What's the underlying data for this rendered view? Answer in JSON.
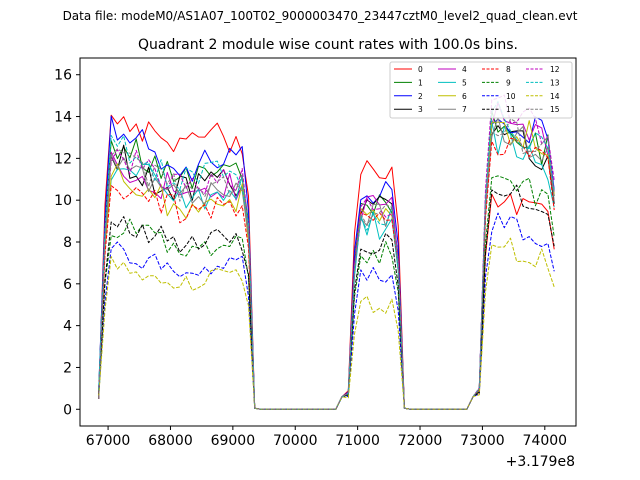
{
  "chart_data": {
    "type": "line",
    "suptitle": "Data file: modeM0/AS1A07_100T02_9000003470_23447cztM0_level2_quad_clean.evt",
    "title": "Quadrant 2 module wise count rates with 100.0s bins.",
    "xlabel": "",
    "ylabel": "",
    "x_offset_label": "+3.179e8",
    "x_offset": 317900000,
    "xlim": [
      66550,
      74500
    ],
    "ylim": [
      -0.8,
      16.8
    ],
    "xticks": [
      67000,
      68000,
      69000,
      70000,
      71000,
      72000,
      73000,
      74000
    ],
    "xtick_labels": [
      "67000",
      "68000",
      "69000",
      "70000",
      "71000",
      "72000",
      "73000",
      "74000"
    ],
    "yticks": [
      0,
      2,
      4,
      6,
      8,
      10,
      12,
      14,
      16
    ],
    "ytick_labels": [
      "0",
      "2",
      "4",
      "6",
      "8",
      "10",
      "12",
      "14",
      "16"
    ],
    "grid": false,
    "legend_position": "top-right",
    "bin_size_s": 100,
    "segments": [
      {
        "start": 66850,
        "end": 69250
      },
      {
        "start": 70850,
        "end": 71650
      },
      {
        "start": 72950,
        "end": 74150
      }
    ],
    "series": [
      {
        "name": "0",
        "color": "#ff0000",
        "dash": "solid",
        "level": [
          13.6,
          11.7,
          10.2
        ],
        "amp": 0.25
      },
      {
        "name": "1",
        "color": "#008000",
        "dash": "solid",
        "level": [
          12.0,
          9.8,
          13.6
        ],
        "amp": 0.25
      },
      {
        "name": "2",
        "color": "#0000ff",
        "dash": "solid",
        "level": [
          12.6,
          10.5,
          14.0
        ],
        "amp": 0.3
      },
      {
        "name": "3",
        "color": "#000000",
        "dash": "solid",
        "level": [
          11.4,
          9.6,
          13.1
        ],
        "amp": 0.3
      },
      {
        "name": "4",
        "color": "#bf00bf",
        "dash": "solid",
        "level": [
          11.2,
          9.5,
          13.9
        ],
        "amp": 0.3
      },
      {
        "name": "5",
        "color": "#00bfbf",
        "dash": "solid",
        "level": [
          11.1,
          8.8,
          12.9
        ],
        "amp": 0.3
      },
      {
        "name": "6",
        "color": "#bfbf00",
        "dash": "solid",
        "level": [
          10.6,
          9.4,
          13.7
        ],
        "amp": 0.3
      },
      {
        "name": "7",
        "color": "#808080",
        "dash": "solid",
        "level": [
          11.0,
          9.3,
          13.3
        ],
        "amp": 0.3
      },
      {
        "name": "8",
        "color": "#ff0000",
        "dash": "dashed",
        "level": [
          10.3,
          9.2,
          12.7
        ],
        "amp": 0.2
      },
      {
        "name": "9",
        "color": "#008000",
        "dash": "dashed",
        "level": [
          8.4,
          7.5,
          11.0
        ],
        "amp": 0.2
      },
      {
        "name": "10",
        "color": "#0000ff",
        "dash": "dashed",
        "level": [
          7.2,
          6.3,
          8.8
        ],
        "amp": 0.2
      },
      {
        "name": "11",
        "color": "#000000",
        "dash": "dashed",
        "level": [
          8.6,
          7.9,
          10.4
        ],
        "amp": 0.2
      },
      {
        "name": "12",
        "color": "#bf00bf",
        "dash": "dashed",
        "level": [
          11.6,
          9.6,
          14.6
        ],
        "amp": 0.2
      },
      {
        "name": "13",
        "color": "#00bfbf",
        "dash": "dashed",
        "level": [
          11.9,
          9.1,
          13.9
        ],
        "amp": 0.2
      },
      {
        "name": "14",
        "color": "#bfbf00",
        "dash": "dashed",
        "level": [
          6.6,
          5.0,
          7.8
        ],
        "amp": 0.2
      },
      {
        "name": "15",
        "color": "#808080",
        "dash": "dashed",
        "level": [
          11.4,
          9.3,
          13.6
        ],
        "amp": 0.2
      }
    ]
  }
}
